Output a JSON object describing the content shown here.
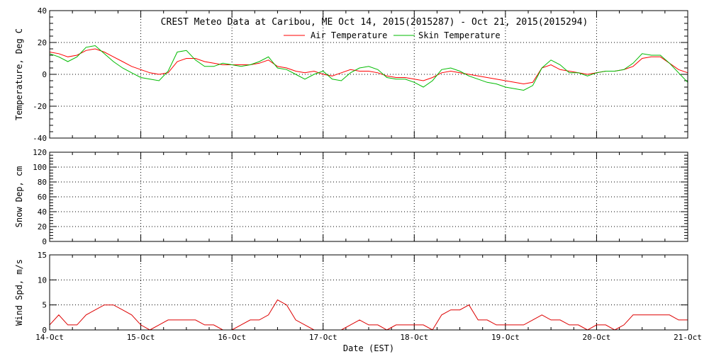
{
  "title": "CREST Meteo Data at Caribou, ME   Oct 14, 2015(2015287) - Oct 21, 2015(2015294)",
  "xlabel": "Date (EST)",
  "colors": {
    "air": "#ff0000",
    "skin": "#00bb00",
    "wind": "#dd0000",
    "frame": "#000000"
  },
  "chart_data": [
    {
      "type": "line",
      "panel": "temperature",
      "ylabel": "Temperature, Deg C",
      "ylim": [
        -40,
        40
      ],
      "yticks": [
        "40",
        "20",
        "0",
        "-20",
        "-40"
      ],
      "x_tick_labels": [
        "14-Oct",
        "15-Oct",
        "16-Oct",
        "17-Oct",
        "18-Oct",
        "19-Oct",
        "20-Oct",
        "21-Oct"
      ],
      "legend": "top-center",
      "grid": true,
      "series": [
        {
          "name": "Air Temperature",
          "color": "#ff0000",
          "x_days": [
            0.0,
            0.1,
            0.2,
            0.3,
            0.4,
            0.5,
            0.6,
            0.7,
            0.8,
            0.9,
            1.0,
            1.1,
            1.2,
            1.3,
            1.4,
            1.5,
            1.6,
            1.7,
            1.8,
            1.9,
            2.0,
            2.1,
            2.2,
            2.3,
            2.4,
            2.5,
            2.6,
            2.7,
            2.8,
            2.9,
            3.0,
            3.1,
            3.2,
            3.3,
            3.4,
            3.5,
            3.6,
            3.7,
            3.8,
            3.9,
            4.0,
            4.1,
            4.2,
            4.3,
            4.4,
            4.5,
            4.6,
            4.7,
            4.8,
            4.9,
            5.0,
            5.1,
            5.2,
            5.3,
            5.4,
            5.5,
            5.6,
            5.7,
            5.8,
            5.9,
            6.0,
            6.1,
            6.2,
            6.3,
            6.4,
            6.5,
            6.6,
            6.7,
            6.8,
            6.9,
            7.0
          ],
          "values": [
            14,
            13,
            11,
            12,
            15,
            16,
            14,
            11,
            8,
            5,
            3,
            1,
            0,
            1,
            8,
            10,
            10,
            8,
            7,
            6,
            6,
            6,
            6,
            7,
            9,
            5,
            4,
            2,
            1,
            2,
            0,
            -1,
            1,
            3,
            2,
            2,
            1,
            -1,
            -2,
            -2,
            -3,
            -4,
            -2,
            1,
            2,
            1,
            0,
            -1,
            -2,
            -3,
            -4,
            -5,
            -6,
            -5,
            4,
            6,
            3,
            2,
            1,
            0,
            1,
            2,
            2,
            3,
            5,
            10,
            11,
            11,
            7,
            3,
            1
          ]
        },
        {
          "name": "Skin Temperature",
          "color": "#00bb00",
          "x_days": [
            0.0,
            0.1,
            0.2,
            0.3,
            0.4,
            0.5,
            0.6,
            0.7,
            0.8,
            0.9,
            1.0,
            1.1,
            1.2,
            1.3,
            1.4,
            1.5,
            1.6,
            1.7,
            1.8,
            1.9,
            2.0,
            2.1,
            2.2,
            2.3,
            2.4,
            2.5,
            2.6,
            2.7,
            2.8,
            2.9,
            3.0,
            3.1,
            3.2,
            3.3,
            3.4,
            3.5,
            3.6,
            3.7,
            3.8,
            3.9,
            4.0,
            4.1,
            4.2,
            4.3,
            4.4,
            4.5,
            4.6,
            4.7,
            4.8,
            4.9,
            5.0,
            5.1,
            5.2,
            5.3,
            5.4,
            5.5,
            5.6,
            5.7,
            5.8,
            5.9,
            6.0,
            6.1,
            6.2,
            6.3,
            6.4,
            6.5,
            6.6,
            6.7,
            6.8,
            6.9,
            7.0
          ],
          "values": [
            13,
            11,
            8,
            11,
            17,
            18,
            13,
            8,
            4,
            1,
            -2,
            -3,
            -4,
            2,
            14,
            15,
            9,
            5,
            5,
            7,
            6,
            5,
            6,
            8,
            11,
            4,
            3,
            0,
            -3,
            0,
            2,
            -3,
            -4,
            1,
            4,
            5,
            3,
            -2,
            -3,
            -3,
            -5,
            -8,
            -4,
            3,
            4,
            2,
            -1,
            -3,
            -5,
            -6,
            -8,
            -9,
            -10,
            -7,
            4,
            9,
            6,
            1,
            1,
            -1,
            1,
            2,
            2,
            3,
            7,
            13,
            12,
            12,
            7,
            1,
            -5
          ]
        }
      ]
    },
    {
      "type": "line",
      "panel": "snow_depth",
      "ylabel": "Snow Dep, cm",
      "ylim": [
        0,
        120
      ],
      "yticks": [
        "120",
        "100",
        "80",
        "60",
        "40",
        "20",
        "0"
      ],
      "grid": true,
      "series": []
    },
    {
      "type": "line",
      "panel": "wind_speed",
      "ylabel": "Wind Spd, m/s",
      "ylim": [
        0,
        15
      ],
      "yticks": [
        "15",
        "10",
        "5",
        "0"
      ],
      "x_tick_labels": [
        "14-Oct",
        "15-Oct",
        "16-Oct",
        "17-Oct",
        "18-Oct",
        "19-Oct",
        "20-Oct",
        "21-Oct"
      ],
      "grid": true,
      "series": [
        {
          "color": "#dd0000",
          "x_days": [
            0.0,
            0.1,
            0.2,
            0.3,
            0.4,
            0.5,
            0.6,
            0.7,
            0.8,
            0.9,
            1.0,
            1.1,
            1.2,
            1.3,
            1.4,
            1.5,
            1.6,
            1.7,
            1.8,
            1.9,
            2.0,
            2.1,
            2.2,
            2.3,
            2.4,
            2.5,
            2.6,
            2.7,
            2.8,
            2.9,
            3.0,
            3.1,
            3.2,
            3.3,
            3.4,
            3.5,
            3.6,
            3.7,
            3.8,
            3.9,
            4.0,
            4.1,
            4.2,
            4.3,
            4.4,
            4.5,
            4.6,
            4.7,
            4.8,
            4.9,
            5.0,
            5.1,
            5.2,
            5.3,
            5.4,
            5.5,
            5.6,
            5.7,
            5.8,
            5.9,
            6.0,
            6.1,
            6.2,
            6.3,
            6.4,
            6.5,
            6.6,
            6.7,
            6.8,
            6.9,
            7.0
          ],
          "values": [
            1,
            3,
            1,
            1,
            3,
            4,
            5,
            5,
            4,
            3,
            1,
            0,
            1,
            2,
            2,
            2,
            2,
            1,
            1,
            0,
            0,
            1,
            2,
            2,
            3,
            6,
            5,
            2,
            1,
            0,
            0,
            0,
            0,
            1,
            2,
            1,
            1,
            0,
            1,
            1,
            1,
            1,
            0,
            3,
            4,
            4,
            5,
            2,
            2,
            1,
            1,
            1,
            1,
            2,
            3,
            2,
            2,
            1,
            1,
            0,
            1,
            1,
            0,
            1,
            3,
            3,
            3,
            3,
            3,
            2,
            2
          ]
        }
      ]
    }
  ]
}
